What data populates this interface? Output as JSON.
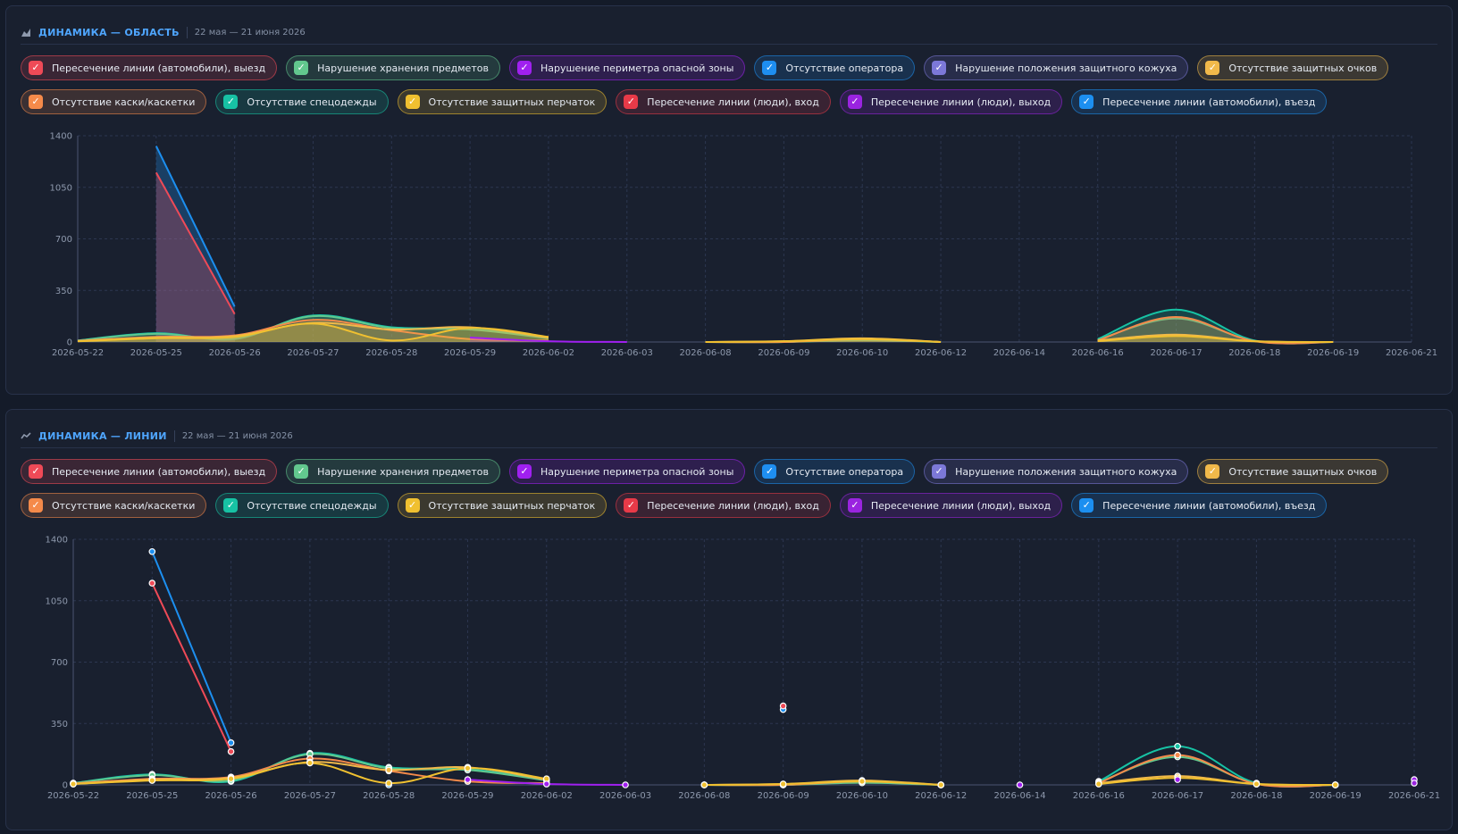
{
  "colors": {
    "cars_exit": "#ef4a57",
    "storage": "#62c88e",
    "perimeter": "#a020f0",
    "operator": "#1e8ef0",
    "cover": "#7c78d8",
    "glasses": "#f1b94a",
    "helmet": "#f58a4a",
    "uniform": "#17c2a4",
    "gloves": "#f0c030",
    "people_in": "#e83a48",
    "people_out": "#9a24e0",
    "cars_entry": "#1c8ff0"
  },
  "legend": [
    {
      "key": "cars_exit",
      "label": "Пересечение линии (автомобили), выезд",
      "checked": true
    },
    {
      "key": "storage",
      "label": "Нарушение хранения предметов",
      "checked": true
    },
    {
      "key": "perimeter",
      "label": "Нарушение периметра опасной зоны",
      "checked": true
    },
    {
      "key": "operator",
      "label": "Отсутствие оператора",
      "checked": true
    },
    {
      "key": "cover",
      "label": "Нарушение положения защитного кожуха",
      "checked": true
    },
    {
      "key": "glasses",
      "label": "Отсутствие защитных очков",
      "checked": true
    },
    {
      "key": "helmet",
      "label": "Отсутствие каски/каскетки",
      "checked": true
    },
    {
      "key": "uniform",
      "label": "Отсутствие спецодежды",
      "checked": true
    },
    {
      "key": "gloves",
      "label": "Отсутствие защитных перчаток",
      "checked": true
    },
    {
      "key": "people_in",
      "label": "Пересечение линии (люди), вход",
      "checked": true
    },
    {
      "key": "people_out",
      "label": "Пересечение линии (люди), выход",
      "checked": true
    },
    {
      "key": "cars_entry",
      "label": "Пересечение линии (автомобили), въезд",
      "checked": true
    }
  ],
  "panels": [
    {
      "title": "ДИНАМИКА — ОБЛАСТЬ",
      "range": "22 мая — 21 июня 2026",
      "icon": "area-chart-icon"
    },
    {
      "title": "ДИНАМИКА — ЛИНИИ",
      "range": "22 мая — 21 июня 2026",
      "icon": "line-chart-icon"
    }
  ],
  "chart_data": [
    {
      "type": "area",
      "title": "ДИНАМИКА — ОБЛАСТЬ",
      "categories": [
        "2026-05-22",
        "2026-05-25",
        "2026-05-26",
        "2026-05-27",
        "2026-05-28",
        "2026-05-29",
        "2026-06-02",
        "2026-06-03",
        "2026-06-08",
        "2026-06-09",
        "2026-06-10",
        "2026-06-12",
        "2026-06-14",
        "2026-06-16",
        "2026-06-17",
        "2026-06-18",
        "2026-06-19",
        "2026-06-21"
      ],
      "yticks": [
        0,
        350,
        700,
        1050,
        1400
      ],
      "ylim": [
        0,
        1400
      ],
      "grid": true,
      "series": [
        {
          "key": "cars_entry",
          "values": [
            null,
            1330,
            240,
            null,
            null,
            null,
            null,
            null,
            null,
            null,
            null,
            null,
            null,
            null,
            null,
            null,
            null,
            null
          ]
        },
        {
          "key": "cars_exit",
          "values": [
            null,
            1150,
            190,
            null,
            null,
            null,
            null,
            null,
            null,
            null,
            null,
            null,
            null,
            null,
            null,
            null,
            null,
            null
          ]
        },
        {
          "key": "uniform",
          "values": [
            10,
            60,
            20,
            180,
            100,
            90,
            30,
            null,
            0,
            0,
            15,
            0,
            null,
            20,
            220,
            10,
            0,
            null
          ]
        },
        {
          "key": "storage",
          "values": [
            10,
            55,
            25,
            175,
            95,
            85,
            25,
            null,
            0,
            0,
            12,
            0,
            null,
            15,
            160,
            8,
            0,
            null
          ]
        },
        {
          "key": "helmet",
          "values": [
            8,
            35,
            45,
            150,
            80,
            20,
            10,
            null,
            0,
            0,
            20,
            0,
            null,
            10,
            170,
            5,
            0,
            null
          ]
        },
        {
          "key": "glasses",
          "values": [
            5,
            30,
            40,
            130,
            85,
            100,
            30,
            null,
            0,
            5,
            25,
            0,
            null,
            10,
            50,
            5,
            0,
            null
          ]
        },
        {
          "key": "gloves",
          "values": [
            5,
            25,
            35,
            125,
            10,
            95,
            35,
            null,
            0,
            5,
            20,
            0,
            null,
            5,
            40,
            5,
            0,
            null
          ]
        },
        {
          "key": "perimeter",
          "values": [
            null,
            null,
            null,
            null,
            null,
            30,
            5,
            0,
            null,
            null,
            null,
            null,
            null,
            null,
            30,
            null,
            null,
            null
          ]
        }
      ]
    },
    {
      "type": "line",
      "title": "ДИНАМИКА — ЛИНИИ",
      "categories": [
        "2026-05-22",
        "2026-05-25",
        "2026-05-26",
        "2026-05-27",
        "2026-05-28",
        "2026-05-29",
        "2026-06-02",
        "2026-06-03",
        "2026-06-08",
        "2026-06-09",
        "2026-06-10",
        "2026-06-12",
        "2026-06-14",
        "2026-06-16",
        "2026-06-17",
        "2026-06-18",
        "2026-06-19",
        "2026-06-21"
      ],
      "yticks": [
        0,
        350,
        700,
        1050,
        1400
      ],
      "ylim": [
        0,
        1400
      ],
      "grid": true,
      "series": [
        {
          "key": "cars_entry",
          "values": [
            null,
            1330,
            240,
            null,
            0,
            null,
            null,
            null,
            null,
            430,
            null,
            null,
            null,
            null,
            null,
            null,
            null,
            null
          ]
        },
        {
          "key": "cars_exit",
          "values": [
            null,
            1150,
            190,
            null,
            null,
            null,
            null,
            null,
            null,
            450,
            null,
            null,
            null,
            null,
            null,
            null,
            null,
            null
          ]
        },
        {
          "key": "uniform",
          "values": [
            10,
            60,
            20,
            180,
            100,
            90,
            30,
            null,
            0,
            0,
            15,
            0,
            null,
            20,
            220,
            10,
            0,
            null
          ]
        },
        {
          "key": "storage",
          "values": [
            10,
            55,
            25,
            175,
            95,
            85,
            25,
            null,
            0,
            0,
            12,
            0,
            null,
            15,
            160,
            8,
            0,
            null
          ]
        },
        {
          "key": "helmet",
          "values": [
            8,
            35,
            45,
            150,
            80,
            20,
            10,
            null,
            0,
            0,
            20,
            0,
            null,
            10,
            170,
            5,
            0,
            null
          ]
        },
        {
          "key": "glasses",
          "values": [
            5,
            30,
            40,
            130,
            85,
            100,
            30,
            null,
            0,
            5,
            25,
            0,
            null,
            10,
            50,
            5,
            0,
            null
          ]
        },
        {
          "key": "gloves",
          "values": [
            5,
            25,
            35,
            125,
            10,
            95,
            35,
            null,
            0,
            5,
            20,
            0,
            null,
            5,
            40,
            5,
            0,
            null
          ]
        },
        {
          "key": "perimeter",
          "values": [
            null,
            null,
            null,
            null,
            null,
            30,
            5,
            0,
            null,
            null,
            null,
            null,
            0,
            null,
            30,
            null,
            null,
            30
          ]
        },
        {
          "key": "people_out",
          "values": [
            null,
            null,
            null,
            null,
            null,
            null,
            null,
            null,
            null,
            null,
            null,
            null,
            null,
            null,
            null,
            null,
            null,
            10
          ]
        }
      ]
    }
  ]
}
